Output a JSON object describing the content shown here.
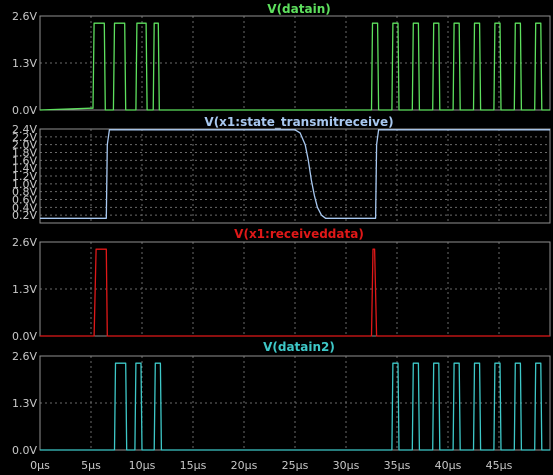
{
  "chart_data": [
    {
      "type": "line",
      "title": "V(datain)",
      "color": "#5ee05e",
      "yticks": [
        "2.6V",
        "1.3V",
        "0.0V"
      ],
      "ytick_values": [
        2.6,
        1.3,
        0.0
      ],
      "ylim": [
        0,
        2.6
      ],
      "xlim": [
        0,
        50
      ],
      "x": [
        0,
        5.0,
        5.2,
        5.3,
        6.3,
        6.4,
        7.2,
        7.3,
        8.3,
        8.4,
        9.4,
        9.5,
        10.4,
        10.5,
        11.1,
        11.2,
        11.6,
        11.7,
        32.5,
        32.6,
        33.1,
        33.2,
        34.5,
        34.6,
        35.1,
        35.2,
        36.5,
        36.6,
        37.1,
        37.2,
        38.5,
        38.6,
        39.1,
        39.2,
        40.5,
        40.6,
        41.1,
        41.2,
        42.5,
        42.6,
        43.1,
        43.2,
        44.5,
        44.6,
        45.1,
        45.2,
        46.5,
        46.6,
        47.1,
        47.2,
        48.5,
        48.6,
        49.1,
        49.2,
        50
      ],
      "y": [
        0,
        0.05,
        0.05,
        2.4,
        2.4,
        0,
        0,
        2.4,
        2.4,
        0,
        0,
        2.4,
        2.4,
        0,
        0,
        2.4,
        2.4,
        0,
        0,
        2.4,
        2.4,
        0,
        0,
        2.4,
        2.4,
        0,
        0,
        2.4,
        2.4,
        0,
        0,
        2.4,
        2.4,
        0,
        0,
        2.4,
        2.4,
        0,
        0,
        2.4,
        2.4,
        0,
        0,
        2.4,
        2.4,
        0,
        0,
        2.4,
        2.4,
        0,
        0,
        2.4,
        2.4,
        0,
        0
      ]
    },
    {
      "type": "line",
      "title": "V(x1:state_transmitreceive)",
      "color": "#a8c8f0",
      "yticks": [
        "2.4V",
        "2.2V",
        "2.0V",
        "1.8V",
        "1.6V",
        "1.4V",
        "1.2V",
        "1.0V",
        "0.8V",
        "0.6V",
        "0.4V",
        "0.2V"
      ],
      "ytick_values": [
        2.4,
        2.2,
        2.0,
        1.8,
        1.6,
        1.4,
        1.2,
        1.0,
        0.8,
        0.6,
        0.4,
        0.2
      ],
      "ylim": [
        0,
        2.4
      ],
      "xlim": [
        0,
        50
      ],
      "x": [
        0,
        6.5,
        6.6,
        6.8,
        25.0,
        25.5,
        26.0,
        26.3,
        26.6,
        26.9,
        27.2,
        27.6,
        28.0,
        29.0,
        32.9,
        33.0,
        33.2,
        50
      ],
      "y": [
        0.12,
        0.12,
        2.0,
        2.38,
        2.38,
        2.3,
        2.0,
        1.6,
        1.1,
        0.7,
        0.4,
        0.2,
        0.12,
        0.12,
        0.12,
        2.0,
        2.38,
        2.38
      ]
    },
    {
      "type": "line",
      "title": "V(x1:receiveddata)",
      "color": "#e01818",
      "yticks": [
        "2.6V",
        "1.3V",
        "0.0V"
      ],
      "ytick_values": [
        2.6,
        1.3,
        0.0
      ],
      "ylim": [
        0,
        2.6
      ],
      "xlim": [
        0,
        50
      ],
      "x": [
        0,
        5.3,
        5.5,
        5.6,
        6.5,
        6.6,
        6.8,
        32.5,
        32.65,
        32.8,
        33.0,
        50
      ],
      "y": [
        0,
        0,
        2.4,
        2.4,
        2.4,
        0,
        0,
        0,
        2.4,
        2.4,
        0,
        0
      ]
    },
    {
      "type": "line",
      "title": "V(datain2)",
      "color": "#3ec8c8",
      "yticks": [
        "2.6V",
        "1.3V",
        "0.0V"
      ],
      "ytick_values": [
        2.6,
        1.3,
        0.0
      ],
      "ylim": [
        0,
        2.6
      ],
      "xlim": [
        0,
        50
      ],
      "x": [
        0,
        7.3,
        7.4,
        8.4,
        8.5,
        9.3,
        9.4,
        9.9,
        10.0,
        11.2,
        11.3,
        11.8,
        11.9,
        34.5,
        34.6,
        35.1,
        35.2,
        36.5,
        36.6,
        37.1,
        37.2,
        38.5,
        38.6,
        39.1,
        39.2,
        40.5,
        40.6,
        41.1,
        41.2,
        42.5,
        42.6,
        43.1,
        43.2,
        44.5,
        44.6,
        45.1,
        45.2,
        46.5,
        46.6,
        47.1,
        47.2,
        48.5,
        48.6,
        49.1,
        49.2,
        50
      ],
      "y": [
        0,
        0,
        2.4,
        2.4,
        0,
        0,
        2.4,
        2.4,
        0,
        0,
        2.4,
        2.4,
        0,
        0,
        2.4,
        2.4,
        0,
        0,
        2.4,
        2.4,
        0,
        0,
        2.4,
        2.4,
        0,
        0,
        2.4,
        2.4,
        0,
        0,
        2.4,
        2.4,
        0,
        0,
        2.4,
        2.4,
        0,
        0,
        2.4,
        2.4,
        0,
        0,
        2.4,
        2.4,
        0,
        0
      ]
    }
  ],
  "xaxis": {
    "ticks": [
      "0µs",
      "5µs",
      "10µs",
      "15µs",
      "20µs",
      "25µs",
      "30µs",
      "35µs",
      "40µs",
      "45µs"
    ],
    "tick_values": [
      0,
      5,
      10,
      15,
      20,
      25,
      30,
      35,
      40,
      45
    ]
  }
}
